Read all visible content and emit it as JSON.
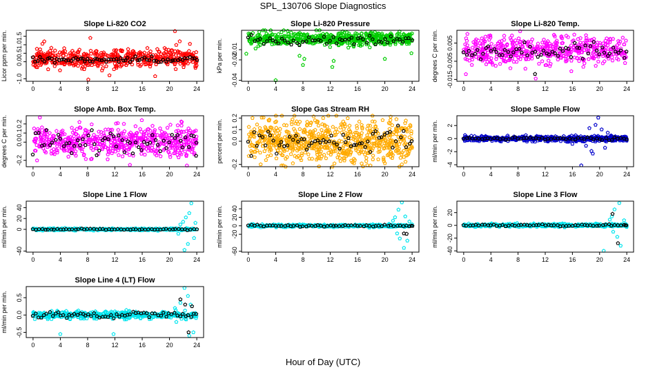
{
  "figure": {
    "title": "SPL_130706  Slope Diagnostics",
    "xlabel": "Hour of Day (UTC)"
  },
  "chart_data": [
    {
      "type": "scatter",
      "title": "Slope Li-820 CO2",
      "ylabel": "Licor ppm per min.",
      "xlim": [
        -1,
        25
      ],
      "ylim": [
        -1.15,
        1.85
      ],
      "xticks": [
        "0",
        "4",
        "8",
        "12",
        "16",
        "20",
        "24"
      ],
      "yticks": [
        "-1.0",
        "0.0",
        "0.5",
        "1.0",
        "1.5"
      ],
      "series": [
        {
          "name": "all",
          "color": "#ff0000",
          "seed": 11,
          "n": 500,
          "center": 0.2,
          "spread": 0.28,
          "outliers": [
            [
              8.4,
              1.4
            ],
            [
              8.1,
              -1.05
            ],
            [
              20.8,
              1.8
            ],
            [
              21.5,
              1.2
            ],
            [
              23.0,
              1.05
            ],
            [
              11.2,
              -0.8
            ],
            [
              17.9,
              -0.85
            ]
          ]
        },
        {
          "name": "hourly",
          "color": "#000000",
          "seed": 12,
          "n": 70,
          "center": 0.12,
          "spread": 0.1,
          "outliers": []
        }
      ]
    },
    {
      "type": "scatter",
      "title": "Slope Li-820 Pressure",
      "ylabel": "kPa per min.",
      "xlim": [
        -1,
        25
      ],
      "ylim": [
        -0.041,
        0.009
      ],
      "xticks": [
        "0",
        "4",
        "8",
        "12",
        "16",
        "20",
        "24"
      ],
      "yticks": [
        "-0.04",
        "-0.02",
        "-0.01"
      ],
      "series": [
        {
          "name": "all",
          "color": "#00cc00",
          "seed": 21,
          "n": 560,
          "center": 0.001,
          "spread": 0.0032,
          "outliers": [
            [
              4.0,
              -0.04
            ],
            [
              8.0,
              -0.025
            ],
            [
              8.2,
              -0.019
            ],
            [
              12.3,
              -0.027
            ],
            [
              12.5,
              -0.021
            ],
            [
              20.0,
              -0.019
            ],
            [
              23.9,
              -0.0135
            ],
            [
              -0.3,
              -0.014
            ],
            [
              7.5,
              -0.016
            ]
          ]
        },
        {
          "name": "hourly",
          "color": "#000000",
          "seed": 22,
          "n": 55,
          "center": -0.001,
          "spread": 0.0025,
          "outliers": []
        }
      ]
    },
    {
      "type": "scatter",
      "title": "Slope Li-820 Temp.",
      "ylabel": "degrees C per min.",
      "xlim": [
        -1,
        25
      ],
      "ylim": [
        -0.016,
        0.012
      ],
      "xticks": [
        "0",
        "4",
        "8",
        "12",
        "16",
        "20",
        "24"
      ],
      "yticks": [
        "-0.015",
        "-0.005",
        "0.005"
      ],
      "series": [
        {
          "name": "all",
          "color": "#ff00ff",
          "seed": 31,
          "n": 520,
          "center": 0.001,
          "spread": 0.0038,
          "outliers": [
            [
              8.3,
              0.0115
            ],
            [
              3.2,
              0.0085
            ],
            [
              10.6,
              -0.0145
            ],
            [
              15.1,
              0.009
            ],
            [
              1.2,
              -0.007
            ]
          ]
        },
        {
          "name": "hourly",
          "color": "#000000",
          "seed": 32,
          "n": 60,
          "center": 0.0005,
          "spread": 0.0025,
          "outliers": [
            [
              10.5,
              -0.012
            ]
          ]
        }
      ]
    },
    {
      "type": "scatter",
      "title": "Slope Amb. Box Temp.",
      "ylabel": "degrees C per min.",
      "xlim": [
        -1,
        25
      ],
      "ylim": [
        -0.27,
        0.29
      ],
      "xticks": [
        "0",
        "4",
        "8",
        "12",
        "16",
        "20",
        "24"
      ],
      "yticks": [
        "-0.2",
        "0.0",
        "0.1",
        "0.2"
      ],
      "series": [
        {
          "name": "all",
          "color": "#ff00ff",
          "seed": 41,
          "n": 560,
          "center": 0.0,
          "spread": 0.08,
          "outliers": [
            [
              1.0,
              0.27
            ],
            [
              14.2,
              -0.25
            ],
            [
              21.8,
              0.22
            ],
            [
              6.8,
              0.22
            ]
          ]
        },
        {
          "name": "hourly",
          "color": "#000000",
          "seed": 42,
          "n": 60,
          "center": 0.0,
          "spread": 0.07,
          "outliers": [
            [
              23.9,
              -0.15
            ]
          ]
        }
      ]
    },
    {
      "type": "scatter",
      "title": "Slope Gas Stream RH",
      "ylabel": "percent per min.",
      "xlim": [
        -1,
        25
      ],
      "ylim": [
        -0.22,
        0.22
      ],
      "xticks": [
        "0",
        "4",
        "8",
        "12",
        "16",
        "20",
        "24"
      ],
      "yticks": [
        "-0.2",
        "0.0",
        "0.1",
        "0.2"
      ],
      "series": [
        {
          "name": "all",
          "color": "#ffaa00",
          "seed": 51,
          "n": 720,
          "center": 0.0,
          "spread": 0.09,
          "outliers": [
            [
              0.6,
              0.2
            ],
            [
              1.8,
              -0.2
            ],
            [
              22.5,
              -0.2
            ],
            [
              21.7,
              0.19
            ],
            [
              13.9,
              0.17
            ]
          ]
        },
        {
          "name": "hourly",
          "color": "#000000",
          "seed": 52,
          "n": 60,
          "center": 0.0,
          "spread": 0.05,
          "outliers": []
        }
      ]
    },
    {
      "type": "scatter",
      "title": "Slope Sample Flow",
      "ylabel": "ml/min per min.",
      "xlim": [
        -1,
        25
      ],
      "ylim": [
        -4.3,
        3.5
      ],
      "xticks": [
        "0",
        "4",
        "8",
        "12",
        "16",
        "20",
        "24"
      ],
      "yticks": [
        "-4",
        "-2",
        "0",
        "2"
      ],
      "series": [
        {
          "name": "all",
          "color": "#0000cc",
          "seed": 61,
          "n": 520,
          "center": 0.0,
          "spread": 0.2,
          "outliers": [
            [
              17.3,
              -4.1
            ],
            [
              19.8,
              3.2
            ],
            [
              19.4,
              2.1
            ],
            [
              18.5,
              1.6
            ],
            [
              20.3,
              1.4
            ],
            [
              18.8,
              -1.9
            ],
            [
              18.0,
              -1.1
            ],
            [
              20.8,
              -1.4
            ],
            [
              21.2,
              0.9
            ],
            [
              19.0,
              -2.3
            ]
          ]
        },
        {
          "name": "hourly",
          "color": "#000000",
          "seed": 62,
          "n": 55,
          "center": 0.0,
          "spread": 0.1,
          "outliers": []
        }
      ]
    },
    {
      "type": "scatter",
      "title": "Slope Line 1 Flow",
      "ylabel": "ml/min per min.",
      "xlim": [
        -1,
        25
      ],
      "ylim": [
        -42,
        52
      ],
      "xticks": [
        "0",
        "4",
        "8",
        "12",
        "16",
        "20",
        "24"
      ],
      "yticks": [
        "-40",
        "0",
        "20",
        "40"
      ],
      "series": [
        {
          "name": "all",
          "color": "#00e5ee",
          "seed": 71,
          "n": 420,
          "center": 0.0,
          "spread": 0.9,
          "outliers": [
            [
              23.2,
              48
            ],
            [
              22.9,
              30
            ],
            [
              22.4,
              22
            ],
            [
              22.0,
              14
            ],
            [
              21.6,
              9
            ],
            [
              23.6,
              -16
            ],
            [
              22.7,
              -27
            ],
            [
              21.3,
              -8
            ],
            [
              23.8,
              12
            ],
            [
              22.2,
              -38
            ]
          ]
        },
        {
          "name": "hourly",
          "color": "#000000",
          "seed": 72,
          "n": 55,
          "center": 0.0,
          "spread": 0.5,
          "outliers": []
        }
      ]
    },
    {
      "type": "scatter",
      "title": "Slope Line 2 Flow",
      "ylabel": "ml/min per min.",
      "xlim": [
        -1,
        25
      ],
      "ylim": [
        -62,
        58
      ],
      "xticks": [
        "0",
        "4",
        "8",
        "12",
        "16",
        "20",
        "24"
      ],
      "yticks": [
        "-60",
        "-20",
        "0",
        "20",
        "40"
      ],
      "series": [
        {
          "name": "all",
          "color": "#00e5ee",
          "seed": 81,
          "n": 460,
          "center": 0.0,
          "spread": 1.5,
          "outliers": [
            [
              22.5,
              55
            ],
            [
              22.0,
              38
            ],
            [
              21.5,
              20
            ],
            [
              22.8,
              -52
            ],
            [
              23.3,
              -35
            ],
            [
              21.2,
              12
            ],
            [
              23.0,
              22
            ],
            [
              22.2,
              -30
            ],
            [
              23.6,
              10
            ],
            [
              21.8,
              -18
            ]
          ]
        },
        {
          "name": "hourly",
          "color": "#000000",
          "seed": 82,
          "n": 55,
          "center": 0.0,
          "spread": 1.0,
          "outliers": [
            [
              22.8,
              -18
            ],
            [
              23.2,
              -19
            ],
            [
              23.9,
              0
            ]
          ]
        }
      ]
    },
    {
      "type": "scatter",
      "title": "Slope Line 3 Flow",
      "ylabel": "ml/min per min.",
      "xlim": [
        -1,
        25
      ],
      "ylim": [
        -42,
        38
      ],
      "xticks": [
        "0",
        "4",
        "8",
        "12",
        "16",
        "20",
        "24"
      ],
      "yticks": [
        "-40",
        "-20",
        "0",
        "20"
      ],
      "series": [
        {
          "name": "all",
          "color": "#00e5ee",
          "seed": 91,
          "n": 460,
          "center": 0.0,
          "spread": 1.2,
          "outliers": [
            [
              22.9,
              35
            ],
            [
              22.2,
              25
            ],
            [
              21.8,
              14
            ],
            [
              22.6,
              -18
            ],
            [
              23.1,
              -32
            ],
            [
              21.5,
              9
            ],
            [
              20.6,
              -40
            ],
            [
              23.6,
              8
            ],
            [
              22.0,
              -10
            ]
          ]
        },
        {
          "name": "hourly",
          "color": "#000000",
          "seed": 92,
          "n": 55,
          "center": 0.0,
          "spread": 0.8,
          "outliers": [
            [
              22.7,
              -28
            ],
            [
              21.9,
              18
            ],
            [
              23.8,
              0
            ]
          ]
        }
      ]
    },
    {
      "type": "scatter",
      "title": "Slope Line 4 (LT) Flow",
      "ylabel": "ml/min per min.",
      "xlim": [
        -1,
        25
      ],
      "ylim": [
        -0.65,
        0.82
      ],
      "xticks": [
        "0",
        "4",
        "8",
        "12",
        "16",
        "20",
        "24"
      ],
      "yticks": [
        "-0.5",
        "0.0",
        "0.5"
      ],
      "series": [
        {
          "name": "all",
          "color": "#00e5ee",
          "seed": 101,
          "n": 460,
          "center": 0.0,
          "spread": 0.05,
          "outliers": [
            [
              22.2,
              0.78
            ],
            [
              22.7,
              0.55
            ],
            [
              21.6,
              0.35
            ],
            [
              23.5,
              -0.5
            ],
            [
              22.9,
              -0.6
            ],
            [
              4.0,
              -0.55
            ],
            [
              11.8,
              -0.55
            ],
            [
              20.8,
              0.2
            ],
            [
              21.0,
              -0.2
            ],
            [
              23.1,
              0.3
            ]
          ]
        },
        {
          "name": "hourly",
          "color": "#000000",
          "seed": 102,
          "n": 60,
          "center": 0.0,
          "spread": 0.04,
          "outliers": [
            [
              21.6,
              0.45
            ],
            [
              22.3,
              0.3
            ],
            [
              22.8,
              -0.5
            ],
            [
              23.3,
              0.25
            ]
          ]
        }
      ]
    }
  ]
}
